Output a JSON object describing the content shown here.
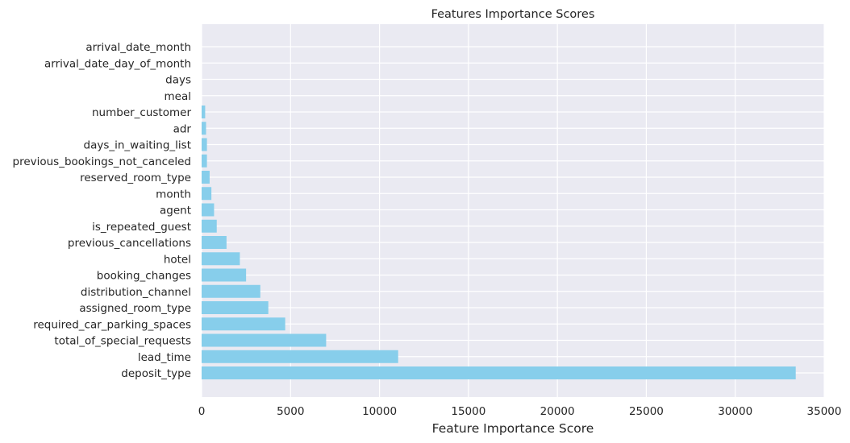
{
  "chart_data": {
    "type": "bar",
    "orientation": "horizontal",
    "title": "Features Importance Scores",
    "xlabel": "Feature Importance Score",
    "ylabel": "",
    "xlim": [
      0,
      35000
    ],
    "xticks": [
      0,
      5000,
      10000,
      15000,
      20000,
      25000,
      30000,
      35000
    ],
    "grid": true,
    "legend": "none",
    "colors": {
      "bar": "#87ceeb",
      "background": "#eaeaf2",
      "grid": "#ffffff"
    },
    "categories": [
      "deposit_type",
      "lead_time",
      "total_of_special_requests",
      "required_car_parking_spaces",
      "assigned_room_type",
      "distribution_channel",
      "booking_changes",
      "hotel",
      "previous_cancellations",
      "is_repeated_guest",
      "agent",
      "month",
      "reserved_room_type",
      "previous_bookings_not_canceled",
      "days_in_waiting_list",
      "adr",
      "number_customer",
      "meal",
      "days",
      "arrival_date_day_of_month",
      "arrival_date_month"
    ],
    "values": [
      33400,
      11050,
      7000,
      4700,
      3750,
      3300,
      2500,
      2150,
      1400,
      850,
      700,
      550,
      450,
      300,
      300,
      250,
      200,
      0,
      0,
      0,
      0
    ]
  }
}
